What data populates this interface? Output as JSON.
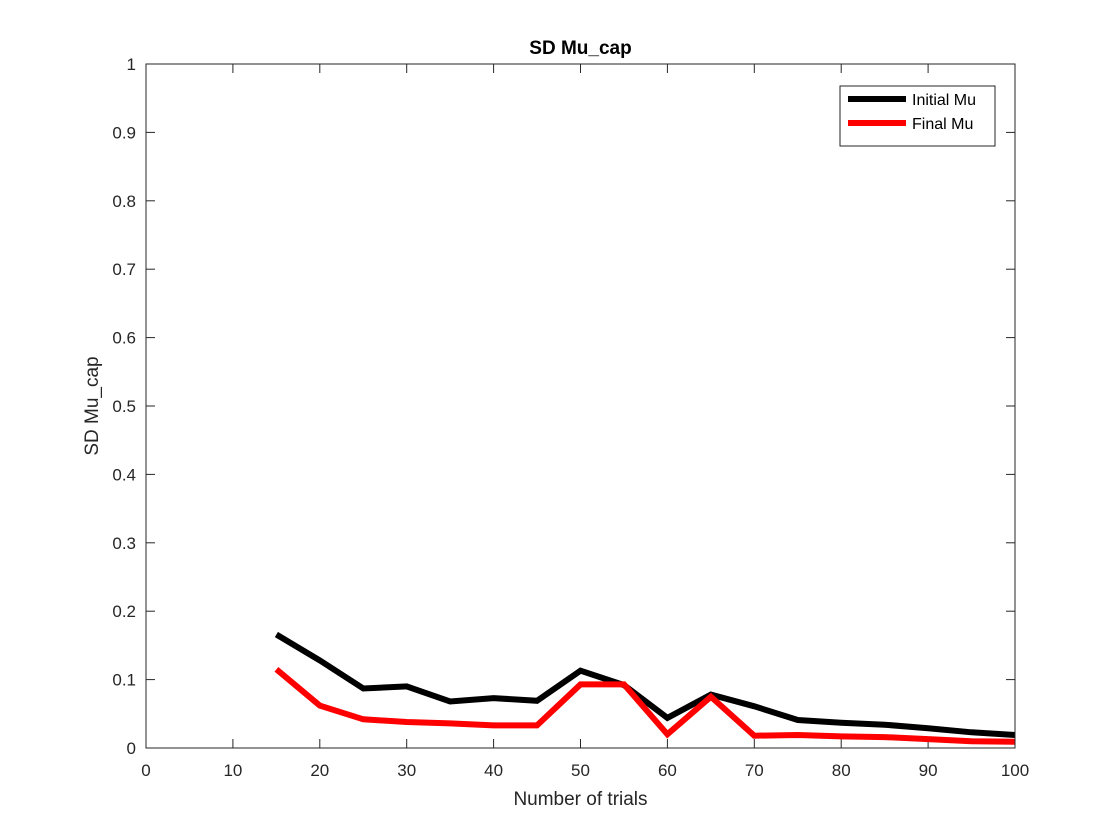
{
  "chart_data": {
    "type": "line",
    "title": "SD Mu_cap",
    "xlabel": "Number of trials",
    "ylabel": "SD Mu_cap",
    "xlim": [
      0,
      100
    ],
    "ylim": [
      0,
      1
    ],
    "xticks": [
      0,
      10,
      20,
      30,
      40,
      50,
      60,
      70,
      80,
      90,
      100
    ],
    "yticks": [
      0,
      0.1,
      0.2,
      0.3,
      0.4,
      0.5,
      0.6,
      0.7,
      0.8,
      0.9,
      1
    ],
    "xtick_labels": [
      "0",
      "10",
      "20",
      "30",
      "40",
      "50",
      "60",
      "70",
      "80",
      "90",
      "100"
    ],
    "ytick_labels": [
      "0",
      "0.1",
      "0.2",
      "0.3",
      "0.4",
      "0.5",
      "0.6",
      "0.7",
      "0.8",
      "0.9",
      "1"
    ],
    "grid": false,
    "legend_position": "top-right",
    "x": [
      15,
      20,
      25,
      30,
      35,
      40,
      45,
      50,
      55,
      60,
      65,
      70,
      75,
      80,
      85,
      90,
      95,
      100
    ],
    "series": [
      {
        "name": "Initial Mu",
        "color": "#000000",
        "values": [
          0.166,
          0.128,
          0.087,
          0.09,
          0.068,
          0.073,
          0.069,
          0.113,
          0.092,
          0.044,
          0.078,
          0.061,
          0.041,
          0.037,
          0.034,
          0.029,
          0.023,
          0.019
        ]
      },
      {
        "name": "Final Mu",
        "color": "#ff0000",
        "values": [
          0.115,
          0.062,
          0.042,
          0.038,
          0.036,
          0.033,
          0.033,
          0.093,
          0.093,
          0.02,
          0.075,
          0.018,
          0.019,
          0.017,
          0.016,
          0.013,
          0.01,
          0.009
        ]
      }
    ]
  }
}
